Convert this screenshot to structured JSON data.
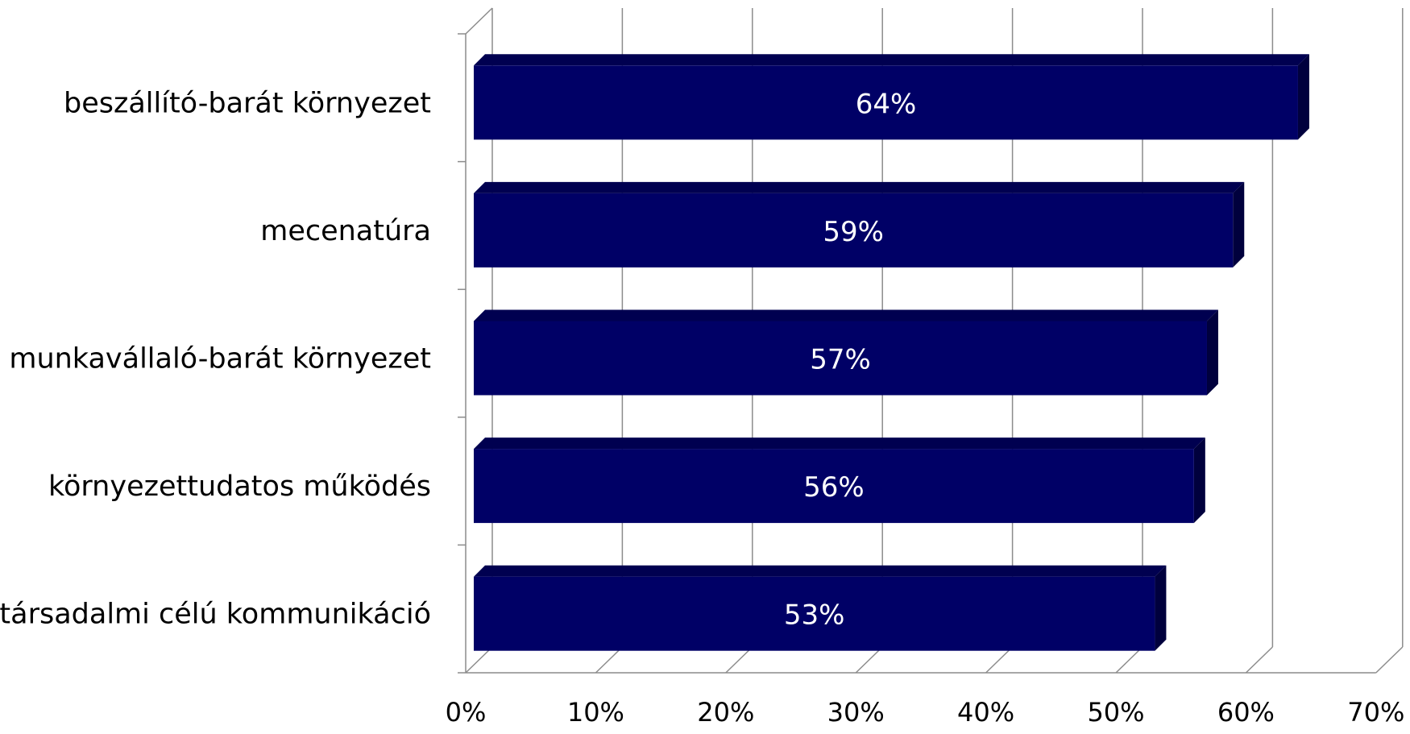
{
  "chart_data": {
    "type": "bar",
    "orientation": "horizontal",
    "categories": [
      "beszállító-barát környezet",
      "mecenatúra",
      "munkavállaló-barát környezet",
      "környezettudatos működés",
      "társadalmi célú kommunikáció"
    ],
    "values": [
      64,
      59,
      57,
      56,
      53
    ],
    "data_labels": [
      "64%",
      "59%",
      "57%",
      "56%",
      "53%"
    ],
    "xlim": [
      0,
      70
    ],
    "x_ticks": [
      0,
      10,
      20,
      30,
      40,
      50,
      60,
      70
    ],
    "x_tick_labels": [
      "0%",
      "10%",
      "20%",
      "30%",
      "40%",
      "50%",
      "60%",
      "70%"
    ],
    "grid": true,
    "style": "3d",
    "bar_color": "#000066"
  }
}
